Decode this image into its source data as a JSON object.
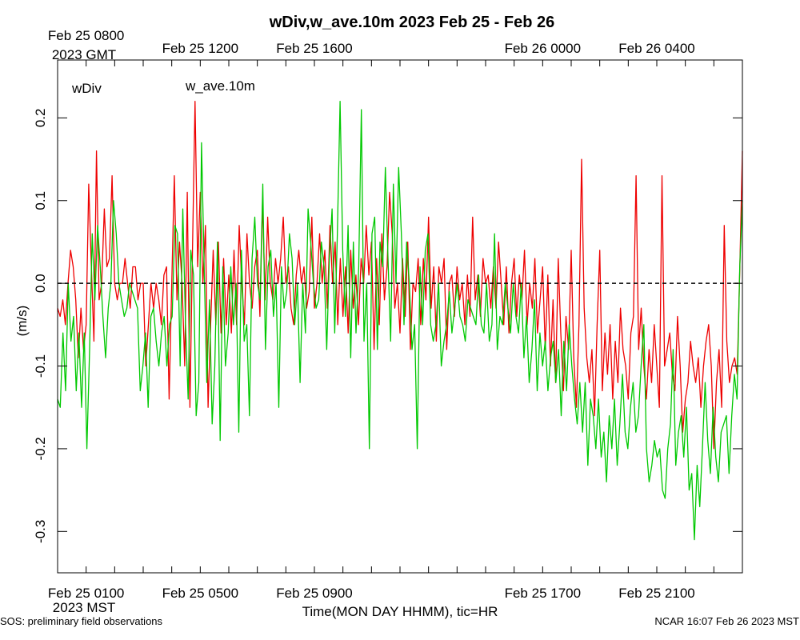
{
  "chart_data": {
    "type": "line",
    "title": "wDiv,w_ave.10m 2023 Feb 25 - Feb 26",
    "ylabel": "(m/s)",
    "xlabel": "Time(MON DAY HHMM), tic=HR",
    "ylim": [
      -0.35,
      0.27
    ],
    "y_ticks": [
      -0.3,
      -0.2,
      -0.1,
      0.0,
      0.1,
      0.2
    ],
    "y_tick_labels": [
      "-0.3",
      "-0.2",
      "-0.1",
      "0.0",
      "0.1",
      "0.2"
    ],
    "x_unit": "hours since Feb 25 0000 MST",
    "xlim": [
      0,
      24
    ],
    "top_axis_labels": [
      {
        "t": 1,
        "text": "Feb 25 0800"
      },
      {
        "t": 5,
        "text": "Feb 25 1200"
      },
      {
        "t": 9,
        "text": "Feb 25 1600"
      },
      {
        "t": 17,
        "text": "Feb 26 0000"
      },
      {
        "t": 21,
        "text": "Feb 26 0400"
      }
    ],
    "top_axis_tz": "2023 GMT",
    "bottom_axis_labels": [
      {
        "t": 1,
        "text": "Feb 25 0100"
      },
      {
        "t": 5,
        "text": "Feb 25 0500"
      },
      {
        "t": 9,
        "text": "Feb 25 0900"
      },
      {
        "t": 17,
        "text": "Feb 25 1700"
      },
      {
        "t": 21,
        "text": "Feb 25 2100"
      }
    ],
    "bottom_axis_tz": "2023 MST",
    "reference_line": 0.0,
    "series": [
      {
        "name": "wDiv",
        "color": "#ee0000",
        "values": [
          -0.03,
          -0.04,
          -0.02,
          -0.05,
          0.0,
          0.04,
          0.02,
          -0.02,
          -0.09,
          -0.03,
          -0.08,
          -0.05,
          0.12,
          0.02,
          -0.07,
          0.16,
          -0.02,
          0.0,
          0.09,
          0.02,
          0.03,
          0.13,
          0.0,
          -0.02,
          0.0,
          0.0,
          0.03,
          0.0,
          -0.03,
          0.02,
          0.02,
          -0.02,
          0.0,
          0.0,
          -0.1,
          -0.05,
          0.0,
          -0.03,
          0.0,
          -0.02,
          -0.05,
          0.01,
          0.02,
          -0.14,
          0.0,
          0.13,
          -0.02,
          0.05,
          0.0,
          -0.1,
          0.11,
          -0.15,
          0.04,
          0.22,
          0.02,
          0.11,
          0.0,
          0.07,
          -0.15,
          -0.05,
          0.04,
          -0.05,
          0.05,
          -0.06,
          0.03,
          -0.05,
          0.01,
          -0.06,
          0.04,
          -0.05,
          0.07,
          0.0,
          -0.05,
          0.06,
          0.0,
          -0.03,
          0.02,
          0.04,
          -0.04,
          0.1,
          -0.02,
          0.08,
          0.0,
          -0.02,
          0.03,
          0.0,
          0.03,
          0.08,
          0.0,
          0.02,
          -0.03,
          -0.05,
          0.01,
          0.04,
          0.0,
          0.02,
          -0.03,
          -0.01,
          0.08,
          -0.03,
          0.0,
          0.06,
          0.0,
          0.04,
          -0.03,
          0.07,
          0.0,
          0.05,
          -0.05,
          0.03,
          -0.04,
          0.02,
          -0.06,
          0.04,
          -0.03,
          0.01,
          -0.05,
          0.03,
          0.0,
          0.07,
          0.01,
          0.05,
          -0.08,
          0.03,
          -0.05,
          0.06,
          -0.02,
          0.02,
          0.11,
          0.06,
          -0.03,
          0.0,
          -0.06,
          0.03,
          -0.04,
          0.05,
          -0.08,
          0.0,
          -0.01,
          0.03,
          -0.05,
          0.03,
          -0.02,
          0.08,
          -0.03,
          0.02,
          -0.07,
          0.02,
          0.0,
          0.03,
          -0.08,
          0.0,
          0.01,
          -0.04,
          0.02,
          -0.02,
          0.0,
          -0.05,
          0.01,
          -0.04,
          0.08,
          -0.02,
          0.01,
          -0.04,
          0.03,
          0.0,
          0.01,
          -0.03,
          0.02,
          -0.03,
          0.05,
          0.0,
          -0.05,
          0.02,
          -0.06,
          0.0,
          0.03,
          -0.04,
          0.01,
          -0.02,
          0.04,
          -0.05,
          0.0,
          -0.03,
          0.03,
          -0.06,
          -0.02,
          0.02,
          -0.08,
          0.01,
          -0.1,
          -0.02,
          -0.12,
          0.03,
          -0.06,
          -0.13,
          -0.04,
          -0.08,
          0.04,
          -0.09,
          -0.15,
          -0.05,
          0.15,
          -0.03,
          -0.09,
          -0.12,
          -0.08,
          -0.16,
          -0.05,
          0.04,
          -0.13,
          -0.06,
          -0.11,
          -0.05,
          -0.14,
          -0.07,
          -0.12,
          -0.03,
          -0.08,
          -0.1,
          -0.14,
          -0.06,
          -0.04,
          0.13,
          -0.08,
          -0.03,
          -0.1,
          -0.14,
          -0.08,
          -0.12,
          -0.05,
          -0.1,
          -0.15,
          0.13,
          -0.1,
          -0.08,
          -0.06,
          -0.11,
          -0.13,
          -0.04,
          -0.1,
          -0.18,
          -0.14,
          -0.12,
          -0.07,
          -0.1,
          -0.12,
          -0.09,
          -0.15,
          -0.1,
          -0.07,
          -0.05,
          -0.1,
          -0.2,
          -0.12,
          -0.08,
          -0.15,
          0.07,
          -0.07,
          -0.12,
          -0.1,
          -0.09,
          -0.11,
          0.02,
          0.16
        ]
      },
      {
        "name": "w_ave.10m",
        "color": "#00c800",
        "values": [
          -0.14,
          -0.15,
          -0.06,
          -0.13,
          0.0,
          -0.07,
          -0.04,
          -0.13,
          -0.06,
          -0.15,
          -0.06,
          -0.2,
          -0.08,
          0.06,
          -0.02,
          0.07,
          0.02,
          -0.04,
          -0.09,
          -0.03,
          0.0,
          0.1,
          0.06,
          0.0,
          -0.02,
          -0.04,
          -0.03,
          0.0,
          -0.01,
          -0.02,
          -0.03,
          -0.13,
          -0.1,
          -0.06,
          -0.15,
          -0.04,
          -0.03,
          -0.07,
          -0.1,
          -0.06,
          -0.04,
          -0.1,
          -0.05,
          -0.04,
          0.07,
          0.06,
          -0.1,
          0.09,
          -0.05,
          -0.14,
          0.04,
          0.01,
          -0.16,
          -0.12,
          0.17,
          0.02,
          -0.12,
          -0.02,
          -0.17,
          -0.1,
          0.05,
          -0.19,
          0.02,
          -0.1,
          -0.06,
          0.02,
          -0.05,
          0.0,
          -0.18,
          0.04,
          -0.07,
          -0.05,
          -0.16,
          0.03,
          0.08,
          0.0,
          -0.02,
          0.12,
          -0.08,
          0.02,
          0.04,
          -0.04,
          0.0,
          -0.15,
          0.02,
          -0.03,
          -0.01,
          0.06,
          0.03,
          -0.05,
          0.0,
          -0.12,
          0.0,
          -0.06,
          0.09,
          0.05,
          0.0,
          -0.03,
          -0.02,
          0.05,
          0.02,
          -0.08,
          0.03,
          0.09,
          -0.06,
          0.06,
          0.22,
          0.04,
          -0.04,
          0.07,
          -0.09,
          0.05,
          -0.06,
          0.02,
          0.21,
          -0.07,
          0.0,
          -0.2,
          0.06,
          0.08,
          -0.08,
          0.05,
          0.02,
          0.14,
          0.03,
          -0.07,
          0.12,
          0.0,
          0.14,
          0.06,
          -0.05,
          0.05,
          0.0,
          -0.08,
          -0.05,
          -0.2,
          0.02,
          -0.05,
          0.04,
          0.06,
          -0.05,
          -0.07,
          -0.05,
          0.0,
          -0.1,
          -0.07,
          -0.05,
          -0.01,
          -0.06,
          -0.03,
          0.0,
          -0.04,
          -0.05,
          -0.07,
          -0.02,
          -0.03,
          -0.04,
          -0.05,
          0.01,
          -0.05,
          -0.06,
          0.0,
          -0.07,
          -0.05,
          0.06,
          -0.08,
          -0.04,
          -0.05,
          0.0,
          -0.03,
          -0.06,
          0.0,
          -0.04,
          -0.06,
          0.0,
          -0.09,
          -0.04,
          -0.12,
          -0.08,
          -0.02,
          -0.13,
          -0.06,
          -0.1,
          -0.07,
          -0.13,
          -0.09,
          -0.07,
          -0.12,
          -0.08,
          -0.16,
          -0.07,
          -0.13,
          -0.05,
          -0.1,
          -0.14,
          -0.17,
          -0.12,
          -0.18,
          -0.12,
          -0.22,
          -0.14,
          -0.16,
          -0.2,
          -0.14,
          -0.21,
          -0.18,
          -0.24,
          -0.16,
          -0.2,
          -0.14,
          -0.22,
          -0.17,
          -0.11,
          -0.18,
          -0.2,
          -0.15,
          -0.12,
          -0.18,
          -0.16,
          -0.1,
          -0.05,
          -0.2,
          -0.24,
          -0.22,
          -0.19,
          -0.21,
          -0.2,
          -0.25,
          -0.26,
          -0.2,
          -0.17,
          -0.08,
          -0.22,
          -0.18,
          -0.16,
          -0.21,
          -0.15,
          -0.25,
          -0.23,
          -0.31,
          -0.22,
          -0.27,
          -0.2,
          -0.12,
          -0.19,
          -0.23,
          -0.15,
          -0.21,
          -0.24,
          -0.18,
          -0.17,
          -0.16,
          -0.23,
          -0.16,
          -0.11,
          -0.14,
          0.02,
          0.1
        ]
      }
    ]
  },
  "footer": {
    "left": "SOS: preliminary field observations",
    "right": "NCAR 16:07 Feb 26 2023 MST"
  }
}
